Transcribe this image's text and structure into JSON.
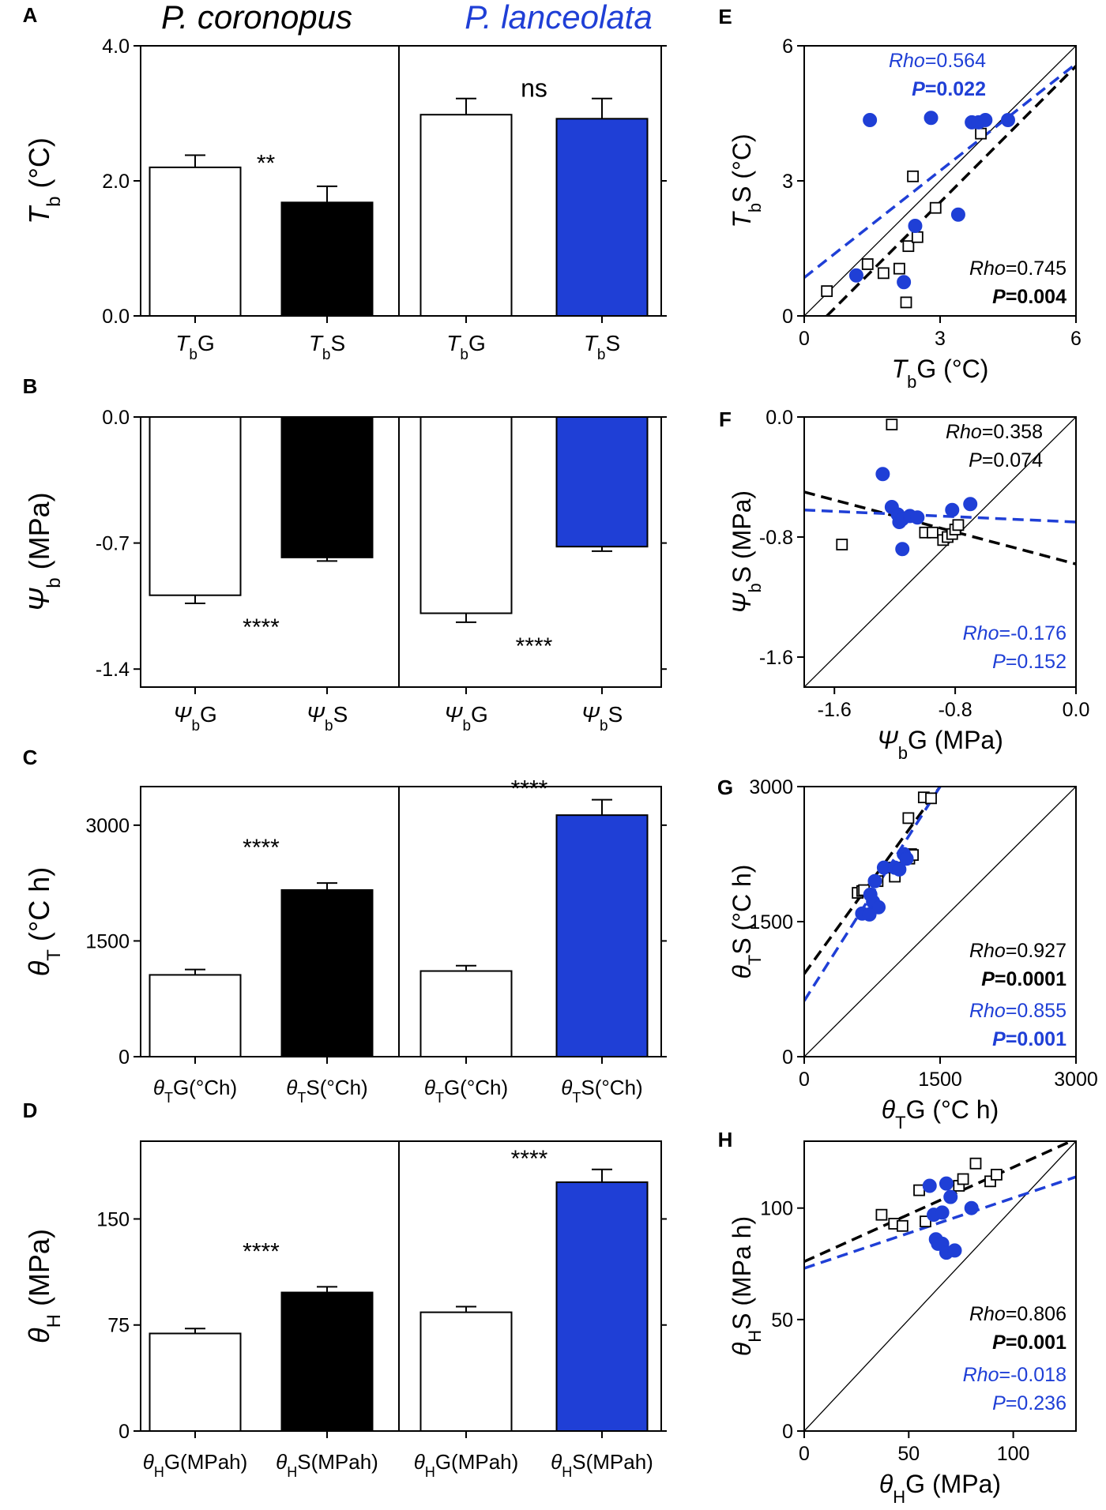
{
  "figure": {
    "species_left": "P. coronopus",
    "species_right": "P. lanceolata",
    "colors": {
      "black": "#000000",
      "blue": "#1f3fd6",
      "white": "#ffffff"
    }
  },
  "chart_data": [
    {
      "id": "A",
      "type": "bar",
      "panel_label": "A",
      "ylabel": {
        "main": "T",
        "sub": "b",
        "rest": " (°C)"
      },
      "ylim": [
        0,
        4
      ],
      "yticks": [
        "0.0",
        "2.0",
        "4.0"
      ],
      "ytick_values": [
        0,
        2,
        4
      ],
      "groups": [
        {
          "species": "P. coronopus",
          "fill": "#ffffff",
          "sig": "**",
          "categories": [
            {
              "main": "T",
              "sub": "b",
              "rest": "G"
            },
            {
              "main": "T",
              "sub": "b",
              "rest": "S"
            }
          ],
          "values": [
            2.2,
            1.68
          ],
          "errors": [
            0.18,
            0.24
          ],
          "fills": [
            "#ffffff",
            "#000000"
          ]
        },
        {
          "species": "P. lanceolata",
          "fill": "#ffffff",
          "sig": "ns",
          "categories": [
            {
              "main": "T",
              "sub": "b",
              "rest": "G"
            },
            {
              "main": "T",
              "sub": "b",
              "rest": "S"
            }
          ],
          "values": [
            2.98,
            2.92
          ],
          "errors": [
            0.24,
            0.3
          ],
          "fills": [
            "#ffffff",
            "#1f3fd6"
          ]
        }
      ]
    },
    {
      "id": "B",
      "type": "bar",
      "panel_label": "B",
      "ylabel": {
        "main": "Ψ",
        "sub": "b",
        "rest": " (MPa)"
      },
      "ylim": [
        -1.5,
        0
      ],
      "yticks": [
        "0.0",
        "-0.7",
        "-1.4"
      ],
      "ytick_values": [
        0,
        -0.7,
        -1.4
      ],
      "groups": [
        {
          "species": "P. coronopus",
          "sig": "****",
          "categories": [
            {
              "main": "Ψ",
              "sub": "b",
              "rest": "G"
            },
            {
              "main": "Ψ",
              "sub": "b",
              "rest": "S"
            }
          ],
          "values": [
            -0.99,
            -0.78
          ],
          "errors": [
            0.045,
            0.02
          ],
          "fills": [
            "#ffffff",
            "#000000"
          ]
        },
        {
          "species": "P. lanceolata",
          "sig": "****",
          "categories": [
            {
              "main": "Ψ",
              "sub": "b",
              "rest": "G"
            },
            {
              "main": "Ψ",
              "sub": "b",
              "rest": "S"
            }
          ],
          "values": [
            -1.09,
            -0.72
          ],
          "errors": [
            0.05,
            0.025
          ],
          "fills": [
            "#ffffff",
            "#1f3fd6"
          ]
        }
      ]
    },
    {
      "id": "C",
      "type": "bar",
      "panel_label": "C",
      "ylabel": {
        "main": "θ",
        "sub": "T",
        "rest": " (°C h)"
      },
      "ylim": [
        0,
        3500
      ],
      "yticks": [
        "0",
        "1500",
        "3000"
      ],
      "ytick_values": [
        0,
        1500,
        3000
      ],
      "groups": [
        {
          "species": "P. coronopus",
          "sig": "****",
          "categories": [
            {
              "main": "θ",
              "sub": "T",
              "rest": "G(°Ch)"
            },
            {
              "main": "θ",
              "sub": "T",
              "rest": "S(°Ch)"
            }
          ],
          "values": [
            1060,
            2160
          ],
          "errors": [
            70,
            90
          ],
          "fills": [
            "#ffffff",
            "#000000"
          ]
        },
        {
          "species": "P. lanceolata",
          "sig": "****",
          "categories": [
            {
              "main": "θ",
              "sub": "T",
              "rest": "G(°Ch)"
            },
            {
              "main": "θ",
              "sub": "T",
              "rest": "S(°Ch)"
            }
          ],
          "values": [
            1110,
            3130
          ],
          "errors": [
            70,
            200
          ],
          "fills": [
            "#ffffff",
            "#1f3fd6"
          ]
        }
      ]
    },
    {
      "id": "D",
      "type": "bar",
      "panel_label": "D",
      "ylabel": {
        "main": "θ",
        "sub": "H",
        "rest": " (MPa)"
      },
      "ylim": [
        0,
        205
      ],
      "yticks": [
        "0",
        "75",
        "150"
      ],
      "ytick_values": [
        0,
        75,
        150
      ],
      "groups": [
        {
          "species": "P. coronopus",
          "sig": "****",
          "categories": [
            {
              "main": "θ",
              "sub": "H",
              "rest": "G(MPah)"
            },
            {
              "main": "θ",
              "sub": "H",
              "rest": "S(MPah)"
            }
          ],
          "values": [
            69,
            98
          ],
          "errors": [
            3.5,
            4
          ],
          "fills": [
            "#ffffff",
            "#000000"
          ]
        },
        {
          "species": "P. lanceolata",
          "sig": "****",
          "categories": [
            {
              "main": "θ",
              "sub": "H",
              "rest": "G(MPah)"
            },
            {
              "main": "θ",
              "sub": "H",
              "rest": "S(MPah)"
            }
          ],
          "values": [
            84,
            176
          ],
          "errors": [
            4,
            9
          ],
          "fills": [
            "#ffffff",
            "#1f3fd6"
          ]
        }
      ]
    },
    {
      "id": "E",
      "type": "scatter",
      "panel_label": "E",
      "xlabel": {
        "main": "T",
        "sub": "b",
        "rest": "G (°C)"
      },
      "ylabel": {
        "main": "T",
        "sub": "b",
        "rest": "S (°C)"
      },
      "xlim": [
        0,
        6
      ],
      "ylim": [
        0,
        6
      ],
      "xticks": [
        "0",
        "3",
        "6"
      ],
      "xtick_values": [
        0,
        3,
        6
      ],
      "yticks": [
        "0",
        "3",
        "6"
      ],
      "ytick_values": [
        0,
        3,
        6
      ],
      "identity_line": true,
      "series": [
        {
          "name": "P. coronopus",
          "marker": "open-square",
          "color": "#000000",
          "points": [
            [
              0.5,
              0.55
            ],
            [
              1.4,
              1.15
            ],
            [
              1.75,
              0.95
            ],
            [
              2.1,
              1.05
            ],
            [
              2.25,
              0.3
            ],
            [
              2.3,
              1.55
            ],
            [
              2.4,
              3.1
            ],
            [
              2.5,
              1.75
            ],
            [
              2.9,
              2.4
            ],
            [
              3.9,
              4.05
            ]
          ],
          "fit": [
            [
              0.5,
              0
            ],
            [
              6,
              5.55
            ]
          ],
          "stats": {
            "rho": "0.745",
            "p": "0.004",
            "p_bold": true
          }
        },
        {
          "name": "P. lanceolata",
          "marker": "filled-circle",
          "color": "#1f3fd6",
          "points": [
            [
              1.15,
              0.9
            ],
            [
              1.45,
              4.35
            ],
            [
              2.2,
              0.75
            ],
            [
              2.45,
              2.0
            ],
            [
              2.8,
              4.4
            ],
            [
              3.4,
              2.25
            ],
            [
              3.7,
              4.3
            ],
            [
              3.85,
              4.3
            ],
            [
              4.0,
              4.35
            ],
            [
              4.5,
              4.35
            ]
          ],
          "fit": [
            [
              0,
              0.85
            ],
            [
              6,
              5.6
            ]
          ],
          "stats": {
            "rho": "0.564",
            "p": "0.022",
            "p_bold": true
          }
        }
      ],
      "stats_text": {
        "rho_label": "Rho",
        "p_label": "P"
      }
    },
    {
      "id": "F",
      "type": "scatter",
      "panel_label": "F",
      "xlabel": {
        "main": "Ψ",
        "sub": "b",
        "rest": "G (MPa)"
      },
      "ylabel": {
        "main": "Ψ",
        "sub": "b",
        "rest": "S (MPa)"
      },
      "xlim": [
        -1.8,
        0
      ],
      "ylim": [
        -1.8,
        0
      ],
      "xticks": [
        "-1.6",
        "-0.8",
        "0.0"
      ],
      "xtick_values": [
        -1.6,
        -0.8,
        0
      ],
      "yticks": [
        "0.0",
        "-0.8",
        "-1.6"
      ],
      "ytick_values": [
        0,
        -0.8,
        -1.6
      ],
      "identity_line": true,
      "series": [
        {
          "name": "P. coronopus",
          "marker": "open-square",
          "color": "#000000",
          "points": [
            [
              -1.55,
              -0.85
            ],
            [
              -1.22,
              -0.05
            ],
            [
              -1.0,
              -0.77
            ],
            [
              -0.95,
              -0.77
            ],
            [
              -0.88,
              -0.82
            ],
            [
              -0.85,
              -0.8
            ],
            [
              -0.82,
              -0.78
            ],
            [
              -0.8,
              -0.75
            ],
            [
              -0.78,
              -0.72
            ]
          ],
          "fit": [
            [
              -1.8,
              -0.5
            ],
            [
              0,
              -0.98
            ]
          ],
          "stats": {
            "rho": "0.358",
            "p": "0.074",
            "p_bold": false
          }
        },
        {
          "name": "P. lanceolata",
          "marker": "filled-circle",
          "color": "#1f3fd6",
          "points": [
            [
              -1.28,
              -0.38
            ],
            [
              -1.22,
              -0.6
            ],
            [
              -1.18,
              -0.65
            ],
            [
              -1.17,
              -0.7
            ],
            [
              -1.15,
              -0.68
            ],
            [
              -1.1,
              -0.66
            ],
            [
              -1.05,
              -0.67
            ],
            [
              -1.15,
              -0.88
            ],
            [
              -0.82,
              -0.62
            ],
            [
              -0.7,
              -0.58
            ]
          ],
          "fit": [
            [
              -1.8,
              -0.62
            ],
            [
              0,
              -0.7
            ]
          ],
          "stats": {
            "rho": "-0.176",
            "p": "0.152",
            "p_bold": false
          }
        }
      ],
      "stats_text": {
        "rho_label": "Rho",
        "p_label": "P"
      }
    },
    {
      "id": "G",
      "type": "scatter",
      "panel_label": "G",
      "xlabel": {
        "main": "θ",
        "sub": "T",
        "rest": "G (°C h)"
      },
      "ylabel": {
        "main": "θ",
        "sub": "T",
        "rest": "S (°C h)"
      },
      "xlim": [
        0,
        3000
      ],
      "ylim": [
        0,
        3000
      ],
      "xticks": [
        "0",
        "1500",
        "3000"
      ],
      "xtick_values": [
        0,
        1500,
        3000
      ],
      "yticks": [
        "0",
        "1500",
        "3000"
      ],
      "ytick_values": [
        0,
        1500,
        3000
      ],
      "identity_line": true,
      "series": [
        {
          "name": "P. coronopus",
          "marker": "open-square",
          "color": "#000000",
          "points": [
            [
              590,
              1820
            ],
            [
              640,
              1840
            ],
            [
              660,
              1850
            ],
            [
              810,
              1950
            ],
            [
              900,
              2100
            ],
            [
              1000,
              2000
            ],
            [
              1050,
              2100
            ],
            [
              1140,
              2240
            ],
            [
              1160,
              2200
            ],
            [
              1180,
              2250
            ],
            [
              1200,
              2240
            ],
            [
              1150,
              2650
            ],
            [
              1320,
              2880
            ],
            [
              1400,
              2870
            ]
          ],
          "fit": [
            [
              0,
              920
            ],
            [
              1500,
              3000
            ]
          ],
          "stats": {
            "rho": "0.927",
            "p": "0.0001",
            "p_bold": true
          }
        },
        {
          "name": "P. lanceolata",
          "marker": "filled-circle",
          "color": "#1f3fd6",
          "points": [
            [
              640,
              1590
            ],
            [
              720,
              1580
            ],
            [
              730,
              1800
            ],
            [
              760,
              1720
            ],
            [
              820,
              1660
            ],
            [
              780,
              1950
            ],
            [
              880,
              2100
            ],
            [
              1000,
              2100
            ],
            [
              1050,
              2080
            ],
            [
              1100,
              2250
            ],
            [
              1130,
              2200
            ]
          ],
          "fit": [
            [
              0,
              620
            ],
            [
              1500,
              3000
            ]
          ],
          "stats": {
            "rho": "0.855",
            "p": "0.001",
            "p_bold": true
          }
        }
      ],
      "stats_text": {
        "rho_label": "Rho",
        "p_label": "P"
      }
    },
    {
      "id": "H",
      "type": "scatter",
      "panel_label": "H",
      "xlabel": {
        "main": "θ",
        "sub": "H",
        "rest": "G (MPa)"
      },
      "ylabel": {
        "main": "θ",
        "sub": "H",
        "rest": "S (MPa h)"
      },
      "xlim": [
        0,
        130
      ],
      "ylim": [
        0,
        130
      ],
      "xticks": [
        "0",
        "50",
        "100"
      ],
      "xtick_values": [
        0,
        50,
        100
      ],
      "yticks": [
        "0",
        "50",
        "100"
      ],
      "ytick_values": [
        0,
        50,
        100
      ],
      "identity_line": true,
      "series": [
        {
          "name": "P. coronopus",
          "marker": "open-square",
          "color": "#000000",
          "points": [
            [
              37,
              97
            ],
            [
              43,
              93
            ],
            [
              47,
              92
            ],
            [
              55,
              108
            ],
            [
              58,
              94
            ],
            [
              74,
              110
            ],
            [
              76,
              113
            ],
            [
              82,
              120
            ],
            [
              89,
              112
            ],
            [
              92,
              115
            ]
          ],
          "fit": [
            [
              0,
              76
            ],
            [
              130,
              131
            ]
          ],
          "stats": {
            "rho": "0.806",
            "p": "0.001",
            "p_bold": true
          }
        },
        {
          "name": "P. lanceolata",
          "marker": "filled-circle",
          "color": "#1f3fd6",
          "points": [
            [
              60,
              110
            ],
            [
              68,
              111
            ],
            [
              70,
              105
            ],
            [
              62,
              97
            ],
            [
              66,
              98
            ],
            [
              80,
              100
            ],
            [
              63,
              86
            ],
            [
              64,
              84
            ],
            [
              66,
              84
            ],
            [
              68,
              80
            ],
            [
              72,
              81
            ]
          ],
          "fit": [
            [
              0,
              73
            ],
            [
              130,
              114
            ]
          ],
          "stats": {
            "rho": "-0.018",
            "p": "0.236",
            "p_bold": false
          }
        }
      ],
      "stats_text": {
        "rho_label": "Rho",
        "p_label": "P"
      }
    }
  ]
}
